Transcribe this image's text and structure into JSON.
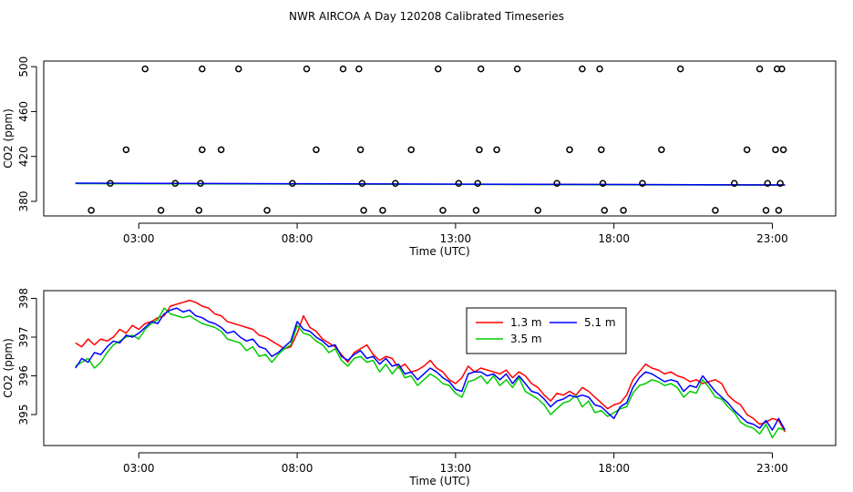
{
  "title": "NWR AIRCOA A  Day 120208  Calibrated Timeseries",
  "chart_data": [
    {
      "type": "scatter+line",
      "title": "",
      "xlabel": "Time (UTC)",
      "ylabel": "CO2 (ppm)",
      "xlim": [
        0,
        25
      ],
      "ylim": [
        367,
        505
      ],
      "xticks": [
        3,
        8,
        13,
        18,
        23
      ],
      "xtick_labels": [
        "03:00",
        "08:00",
        "13:00",
        "18:00",
        "23:00"
      ],
      "yticks": [
        380,
        420,
        460,
        500
      ],
      "ytick_labels": [
        "380",
        "420",
        "460",
        "500"
      ],
      "calibration_points": [
        [
          1.5,
          372
        ],
        [
          2.1,
          396
        ],
        [
          2.6,
          426
        ],
        [
          3.2,
          498
        ],
        [
          3.7,
          372
        ],
        [
          4.15,
          396
        ],
        [
          4.9,
          372
        ],
        [
          4.95,
          396
        ],
        [
          5.0,
          426
        ],
        [
          5.0,
          498
        ],
        [
          5.6,
          426
        ],
        [
          6.15,
          498
        ],
        [
          7.05,
          372
        ],
        [
          7.85,
          396
        ],
        [
          8.3,
          498
        ],
        [
          8.6,
          426
        ],
        [
          9.45,
          498
        ],
        [
          9.95,
          498
        ],
        [
          10.0,
          426
        ],
        [
          10.05,
          396
        ],
        [
          10.1,
          372
        ],
        [
          10.7,
          372
        ],
        [
          11.1,
          396
        ],
        [
          11.6,
          426
        ],
        [
          12.45,
          498
        ],
        [
          12.6,
          372
        ],
        [
          13.1,
          396
        ],
        [
          13.65,
          372
        ],
        [
          13.7,
          396
        ],
        [
          13.75,
          426
        ],
        [
          13.8,
          498
        ],
        [
          14.3,
          426
        ],
        [
          14.95,
          498
        ],
        [
          15.6,
          372
        ],
        [
          16.2,
          396
        ],
        [
          16.6,
          426
        ],
        [
          17.0,
          498
        ],
        [
          17.55,
          498
        ],
        [
          17.6,
          426
        ],
        [
          17.65,
          396
        ],
        [
          17.7,
          372
        ],
        [
          18.3,
          372
        ],
        [
          18.9,
          396
        ],
        [
          19.5,
          426
        ],
        [
          20.1,
          498
        ],
        [
          21.2,
          372
        ],
        [
          21.8,
          396
        ],
        [
          22.2,
          426
        ],
        [
          22.6,
          498
        ],
        [
          22.8,
          372
        ],
        [
          22.85,
          396
        ],
        [
          23.1,
          426
        ],
        [
          23.15,
          498
        ],
        [
          23.2,
          372
        ],
        [
          23.25,
          396
        ],
        [
          23.3,
          498
        ],
        [
          23.35,
          426
        ]
      ],
      "series": [
        {
          "name": "1.3 m",
          "color": "#ff0000",
          "x": [
            1.0,
            23.4
          ],
          "values": [
            396.0,
            394.6
          ]
        },
        {
          "name": "3.5 m",
          "color": "#00cc00",
          "x": [
            1.0,
            23.4
          ],
          "values": [
            395.8,
            394.4
          ]
        },
        {
          "name": "5.1 m",
          "color": "#0000ff",
          "x": [
            1.0,
            23.4
          ],
          "values": [
            396.2,
            394.6
          ]
        }
      ]
    },
    {
      "type": "line",
      "title": "",
      "xlabel": "Time (UTC)",
      "ylabel": "CO2 (ppm)",
      "xlim": [
        0,
        25
      ],
      "ylim": [
        394.2,
        398.2
      ],
      "xticks": [
        3,
        8,
        13,
        18,
        23
      ],
      "xtick_labels": [
        "03:00",
        "08:00",
        "13:00",
        "18:00",
        "23:00"
      ],
      "yticks": [
        395,
        396,
        397,
        398
      ],
      "ytick_labels": [
        "395",
        "396",
        "397",
        "398"
      ],
      "legend": {
        "position": "top-center",
        "entries": [
          "1.3 m",
          "5.1 m",
          "3.5 m"
        ]
      },
      "series": [
        {
          "name": "1.3 m",
          "color": "#ff0000",
          "x": [
            1.0,
            1.2,
            1.4,
            1.6,
            1.8,
            2.0,
            2.2,
            2.4,
            2.6,
            2.8,
            3.0,
            3.2,
            3.4,
            3.6,
            3.8,
            4.0,
            4.2,
            4.4,
            4.6,
            4.8,
            5.0,
            5.2,
            5.4,
            5.6,
            5.8,
            6.0,
            6.2,
            6.4,
            6.6,
            6.8,
            7.0,
            7.2,
            7.4,
            7.6,
            7.8,
            8.0,
            8.2,
            8.4,
            8.6,
            8.8,
            9.0,
            9.2,
            9.4,
            9.6,
            9.8,
            10.0,
            10.2,
            10.4,
            10.6,
            10.8,
            11.0,
            11.2,
            11.4,
            11.6,
            11.8,
            12.0,
            12.2,
            12.4,
            12.6,
            12.8,
            13.0,
            13.2,
            13.4,
            13.6,
            13.8,
            14.0,
            14.2,
            14.4,
            14.6,
            14.8,
            15.0,
            15.2,
            15.4,
            15.6,
            15.8,
            16.0,
            16.2,
            16.4,
            16.6,
            16.8,
            17.0,
            17.2,
            17.4,
            17.6,
            17.8,
            18.0,
            18.2,
            18.4,
            18.6,
            18.8,
            19.0,
            19.2,
            19.4,
            19.6,
            19.8,
            20.0,
            20.2,
            20.4,
            20.6,
            20.8,
            21.0,
            21.2,
            21.4,
            21.6,
            21.8,
            22.0,
            22.2,
            22.4,
            22.6,
            22.8,
            23.0,
            23.2,
            23.4
          ],
          "values": [
            396.85,
            396.75,
            396.95,
            396.8,
            396.95,
            396.9,
            397.0,
            397.2,
            397.1,
            397.3,
            397.2,
            397.35,
            397.4,
            397.5,
            397.55,
            397.8,
            397.85,
            397.9,
            397.95,
            397.9,
            397.8,
            397.75,
            397.6,
            397.55,
            397.4,
            397.35,
            397.3,
            397.25,
            397.2,
            397.05,
            397.0,
            396.9,
            396.8,
            396.7,
            396.75,
            397.1,
            397.55,
            397.25,
            397.15,
            396.95,
            396.85,
            396.75,
            396.55,
            396.35,
            396.6,
            396.7,
            396.8,
            396.55,
            396.4,
            396.5,
            396.45,
            396.2,
            396.3,
            396.1,
            396.15,
            396.25,
            396.4,
            396.2,
            396.1,
            395.9,
            395.8,
            395.95,
            396.25,
            396.1,
            396.2,
            396.15,
            396.1,
            396.05,
            396.15,
            395.95,
            396.1,
            396.0,
            395.8,
            395.7,
            395.5,
            395.35,
            395.55,
            395.5,
            395.6,
            395.5,
            395.7,
            395.6,
            395.45,
            395.3,
            395.15,
            395.25,
            395.3,
            395.5,
            395.9,
            396.1,
            396.3,
            396.2,
            396.15,
            396.05,
            396.1,
            396.0,
            395.95,
            395.85,
            395.9,
            395.8,
            395.85,
            395.9,
            395.8,
            395.5,
            395.35,
            395.25,
            395.0,
            394.9,
            394.75,
            394.8,
            394.9,
            394.85,
            394.55
          ]
        },
        {
          "name": "3.5 m",
          "color": "#00cc00",
          "x": [
            1.0,
            1.2,
            1.4,
            1.6,
            1.8,
            2.0,
            2.2,
            2.4,
            2.6,
            2.8,
            3.0,
            3.2,
            3.4,
            3.6,
            3.8,
            4.0,
            4.2,
            4.4,
            4.6,
            4.8,
            5.0,
            5.2,
            5.4,
            5.6,
            5.8,
            6.0,
            6.2,
            6.4,
            6.6,
            6.8,
            7.0,
            7.2,
            7.4,
            7.6,
            7.8,
            8.0,
            8.2,
            8.4,
            8.6,
            8.8,
            9.0,
            9.2,
            9.4,
            9.6,
            9.8,
            10.0,
            10.2,
            10.4,
            10.6,
            10.8,
            11.0,
            11.2,
            11.4,
            11.6,
            11.8,
            12.0,
            12.2,
            12.4,
            12.6,
            12.8,
            13.0,
            13.2,
            13.4,
            13.6,
            13.8,
            14.0,
            14.2,
            14.4,
            14.6,
            14.8,
            15.0,
            15.2,
            15.4,
            15.6,
            15.8,
            16.0,
            16.2,
            16.4,
            16.6,
            16.8,
            17.0,
            17.2,
            17.4,
            17.6,
            17.8,
            18.0,
            18.2,
            18.4,
            18.6,
            18.8,
            19.0,
            19.2,
            19.4,
            19.6,
            19.8,
            20.0,
            20.2,
            20.4,
            20.6,
            20.8,
            21.0,
            21.2,
            21.4,
            21.6,
            21.8,
            22.0,
            22.2,
            22.4,
            22.6,
            22.8,
            23.0,
            23.2,
            23.4
          ],
          "values": [
            396.25,
            396.35,
            396.45,
            396.2,
            396.35,
            396.6,
            396.8,
            396.9,
            397.0,
            397.05,
            396.95,
            397.2,
            397.35,
            397.45,
            397.75,
            397.6,
            397.55,
            397.5,
            397.55,
            397.45,
            397.35,
            397.3,
            397.25,
            397.15,
            396.95,
            396.9,
            396.85,
            396.65,
            396.75,
            396.5,
            396.55,
            396.35,
            396.55,
            396.7,
            396.8,
            397.3,
            397.1,
            397.05,
            396.9,
            396.8,
            396.6,
            396.7,
            396.4,
            396.25,
            396.45,
            396.5,
            396.35,
            396.4,
            396.1,
            396.3,
            396.05,
            396.25,
            395.95,
            396.0,
            395.75,
            395.9,
            396.05,
            395.95,
            395.8,
            395.75,
            395.55,
            395.45,
            395.85,
            395.9,
            396.0,
            395.8,
            396.0,
            395.75,
            395.9,
            395.7,
            395.95,
            395.6,
            395.5,
            395.4,
            395.25,
            395.0,
            395.15,
            395.3,
            395.35,
            395.5,
            395.2,
            395.35,
            395.05,
            395.1,
            394.95,
            395.05,
            395.15,
            395.2,
            395.55,
            395.75,
            395.8,
            395.9,
            395.85,
            395.75,
            395.8,
            395.7,
            395.45,
            395.6,
            395.55,
            395.9,
            395.7,
            395.45,
            395.4,
            395.2,
            395.05,
            394.8,
            394.7,
            394.65,
            394.5,
            394.75,
            394.4,
            394.65,
            394.6
          ]
        },
        {
          "name": "5.1 m",
          "color": "#0000ff",
          "x": [
            1.0,
            1.2,
            1.4,
            1.6,
            1.8,
            2.0,
            2.2,
            2.4,
            2.6,
            2.8,
            3.0,
            3.2,
            3.4,
            3.6,
            3.8,
            4.0,
            4.2,
            4.4,
            4.6,
            4.8,
            5.0,
            5.2,
            5.4,
            5.6,
            5.8,
            6.0,
            6.2,
            6.4,
            6.6,
            6.8,
            7.0,
            7.2,
            7.4,
            7.6,
            7.8,
            8.0,
            8.2,
            8.4,
            8.6,
            8.8,
            9.0,
            9.2,
            9.4,
            9.6,
            9.8,
            10.0,
            10.2,
            10.4,
            10.6,
            10.8,
            11.0,
            11.2,
            11.4,
            11.6,
            11.8,
            12.0,
            12.2,
            12.4,
            12.6,
            12.8,
            13.0,
            13.2,
            13.4,
            13.6,
            13.8,
            14.0,
            14.2,
            14.4,
            14.6,
            14.8,
            15.0,
            15.2,
            15.4,
            15.6,
            15.8,
            16.0,
            16.2,
            16.4,
            16.6,
            16.8,
            17.0,
            17.2,
            17.4,
            17.6,
            17.8,
            18.0,
            18.2,
            18.4,
            18.6,
            18.8,
            19.0,
            19.2,
            19.4,
            19.6,
            19.8,
            20.0,
            20.2,
            20.4,
            20.6,
            20.8,
            21.0,
            21.2,
            21.4,
            21.6,
            21.8,
            22.0,
            22.2,
            22.4,
            22.6,
            22.8,
            23.0,
            23.2,
            23.4
          ],
          "values": [
            396.2,
            396.45,
            396.35,
            396.6,
            396.55,
            396.75,
            396.9,
            396.85,
            397.05,
            397.0,
            397.1,
            397.25,
            397.4,
            397.35,
            397.6,
            397.7,
            397.75,
            397.65,
            397.7,
            397.55,
            397.5,
            397.4,
            397.35,
            397.25,
            397.1,
            397.15,
            397.0,
            396.9,
            396.95,
            396.75,
            396.7,
            396.5,
            396.6,
            396.75,
            396.9,
            397.4,
            397.2,
            397.15,
            397.0,
            396.9,
            396.75,
            396.8,
            396.5,
            396.4,
            396.55,
            396.65,
            396.45,
            396.5,
            396.3,
            396.45,
            396.25,
            396.3,
            396.05,
            396.1,
            395.9,
            396.05,
            396.2,
            396.1,
            395.95,
            395.85,
            395.65,
            395.6,
            396.05,
            396.1,
            396.1,
            396.0,
            396.05,
            395.9,
            396.05,
            395.8,
            396.0,
            395.8,
            395.6,
            395.55,
            395.4,
            395.2,
            395.35,
            395.4,
            395.5,
            395.45,
            395.5,
            395.45,
            395.25,
            395.2,
            395.05,
            394.9,
            395.2,
            395.3,
            395.7,
            395.95,
            396.1,
            396.05,
            395.95,
            395.85,
            395.9,
            395.85,
            395.6,
            395.75,
            395.7,
            396.0,
            395.8,
            395.6,
            395.45,
            395.3,
            395.1,
            394.95,
            394.8,
            394.75,
            394.65,
            394.85,
            394.6,
            394.9,
            394.6
          ]
        }
      ]
    }
  ]
}
